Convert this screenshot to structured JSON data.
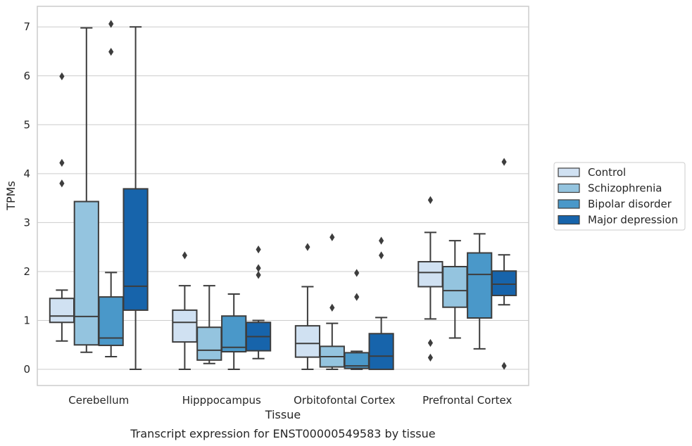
{
  "caption": "Transcript expression for ENST00000549583 by tissue",
  "chart_data": {
    "type": "boxplot",
    "xlabel": "Tissue",
    "ylabel": "TPMs",
    "ylim": [
      -0.33,
      7.42
    ],
    "yticks": [
      0,
      1,
      2,
      3,
      4,
      5,
      6,
      7
    ],
    "grid": true,
    "legend_position": "right",
    "categories": [
      "Cerebellum",
      "Hipppocampus",
      "Orbitofontal Cortex",
      "Prefrontal Cortex"
    ],
    "series": [
      {
        "name": "Control",
        "color": "#d0e1f2",
        "boxes": [
          {
            "whislo": 0.58,
            "q1": 0.96,
            "med": 1.09,
            "q3": 1.45,
            "whishi": 1.62,
            "fliers": [
              3.8,
              4.22,
              5.99
            ]
          },
          {
            "whislo": 0.0,
            "q1": 0.56,
            "med": 0.96,
            "q3": 1.21,
            "whishi": 1.71,
            "fliers": [
              2.33
            ]
          },
          {
            "whislo": 0.0,
            "q1": 0.25,
            "med": 0.53,
            "q3": 0.89,
            "whishi": 1.69,
            "fliers": [
              2.5
            ]
          },
          {
            "whislo": 1.03,
            "q1": 1.69,
            "med": 1.98,
            "q3": 2.2,
            "whishi": 2.8,
            "fliers": [
              0.24,
              0.54,
              3.46
            ]
          }
        ]
      },
      {
        "name": "Schizophrenia",
        "color": "#94c4df",
        "boxes": [
          {
            "whislo": 0.35,
            "q1": 0.5,
            "med": 1.08,
            "q3": 3.43,
            "whishi": 6.98,
            "fliers": []
          },
          {
            "whislo": 0.12,
            "q1": 0.19,
            "med": 0.39,
            "q3": 0.86,
            "whishi": 1.71,
            "fliers": []
          },
          {
            "whislo": 0.0,
            "q1": 0.05,
            "med": 0.26,
            "q3": 0.47,
            "whishi": 0.94,
            "fliers": [
              1.26,
              2.7
            ]
          },
          {
            "whislo": 0.64,
            "q1": 1.27,
            "med": 1.61,
            "q3": 2.1,
            "whishi": 2.63,
            "fliers": []
          }
        ]
      },
      {
        "name": "Bipolar disorder",
        "color": "#4a98c9",
        "boxes": [
          {
            "whislo": 0.26,
            "q1": 0.49,
            "med": 0.64,
            "q3": 1.48,
            "whishi": 1.98,
            "fliers": [
              6.49,
              7.06
            ]
          },
          {
            "whislo": 0.0,
            "q1": 0.36,
            "med": 0.45,
            "q3": 1.09,
            "whishi": 1.54,
            "fliers": []
          },
          {
            "whislo": 0.0,
            "q1": 0.02,
            "med": 0.07,
            "q3": 0.34,
            "whishi": 0.37,
            "fliers": [
              1.48,
              1.97
            ]
          },
          {
            "whislo": 0.42,
            "q1": 1.05,
            "med": 1.94,
            "q3": 2.38,
            "whishi": 2.77,
            "fliers": []
          }
        ]
      },
      {
        "name": "Major depression",
        "color": "#1764ab",
        "boxes": [
          {
            "whislo": 0.0,
            "q1": 1.21,
            "med": 1.7,
            "q3": 3.69,
            "whishi": 7.0,
            "fliers": []
          },
          {
            "whislo": 0.22,
            "q1": 0.38,
            "med": 0.67,
            "q3": 0.96,
            "whishi": 1.0,
            "fliers": [
              1.93,
              2.07,
              2.45
            ]
          },
          {
            "whislo": 0.0,
            "q1": 0.0,
            "med": 0.27,
            "q3": 0.73,
            "whishi": 1.06,
            "fliers": [
              2.33,
              2.63
            ]
          },
          {
            "whislo": 1.32,
            "q1": 1.51,
            "med": 1.74,
            "q3": 2.01,
            "whishi": 2.34,
            "fliers": [
              0.07,
              4.24
            ]
          }
        ]
      }
    ]
  }
}
